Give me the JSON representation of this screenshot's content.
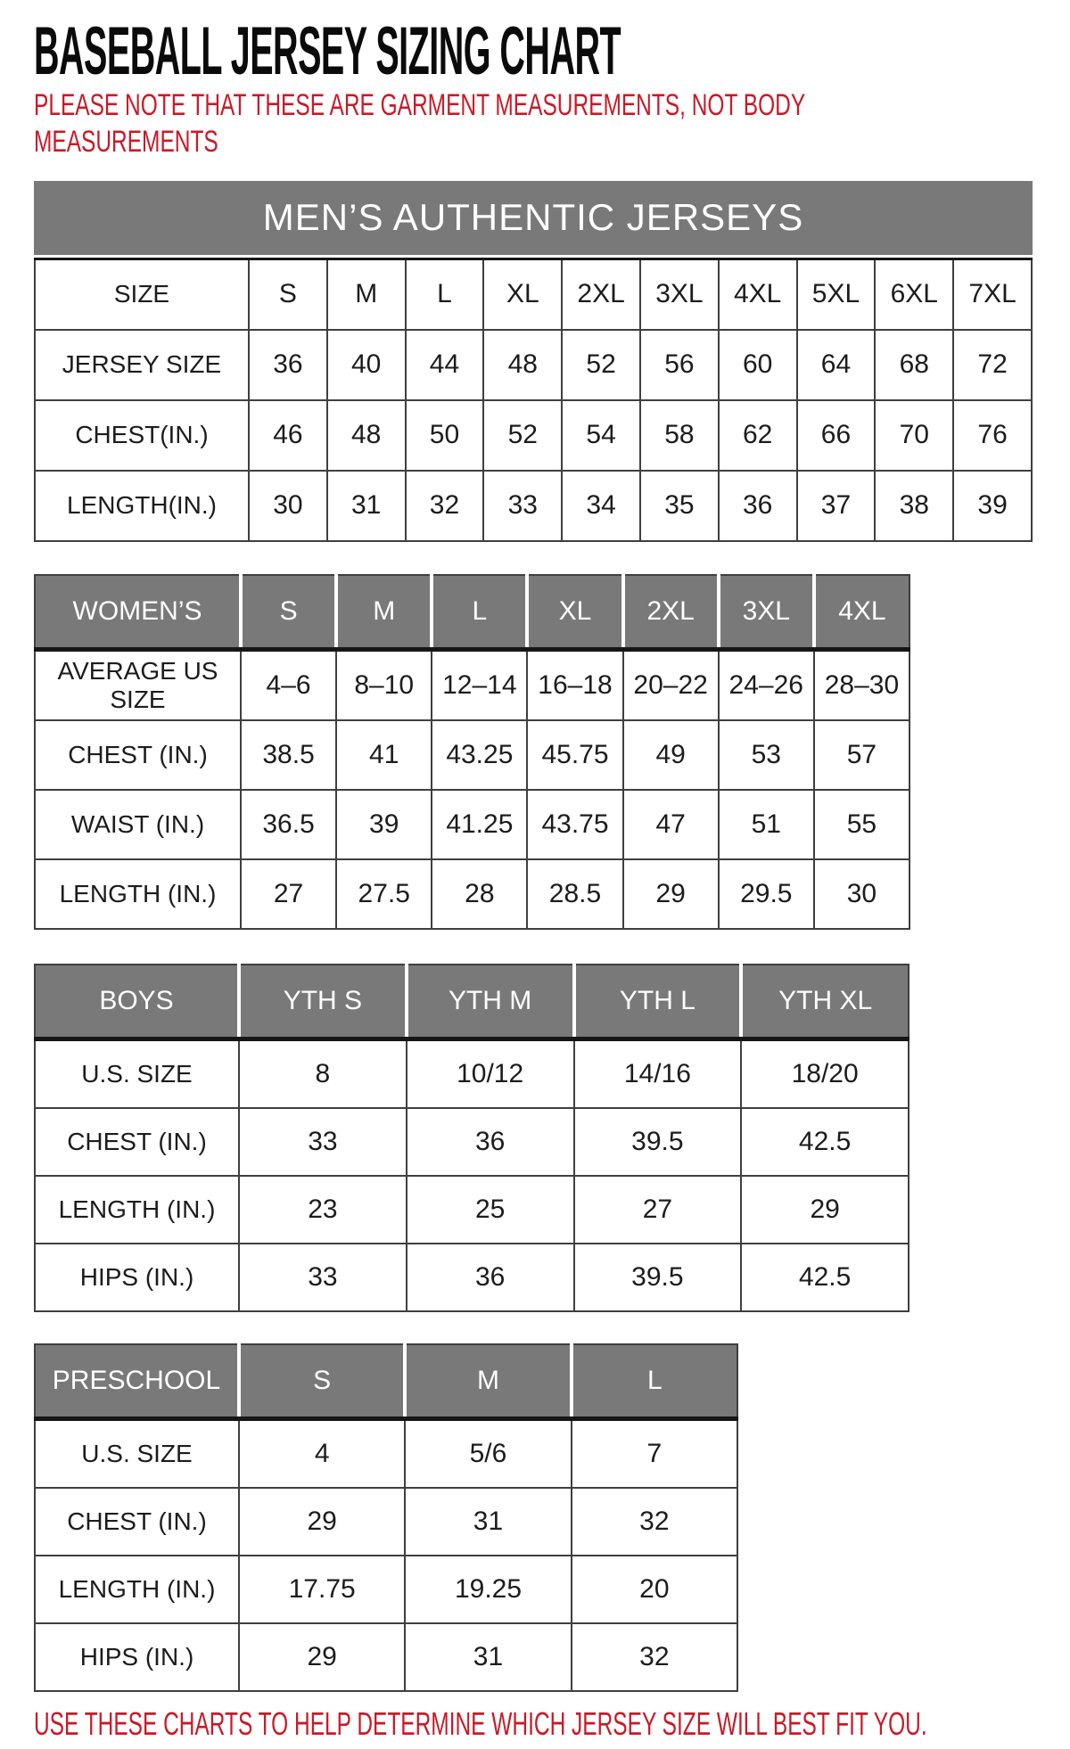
{
  "page": {
    "title": "BASEBALL JERSEY SIZING CHART",
    "note": "PLEASE NOTE THAT THESE ARE GARMENT MEASUREMENTS, NOT BODY MEASUREMENTS",
    "footer": "USE THESE CHARTS TO HELP DETERMINE WHICH JERSEY SIZE WILL BEST FIT YOU.",
    "colors": {
      "accent_red": "#c81a28",
      "header_gray": "#797979"
    }
  },
  "tables": {
    "mens": {
      "banner": "MEN’S AUTHENTIC JERSEYS",
      "rows": [
        [
          "SIZE",
          "S",
          "M",
          "L",
          "XL",
          "2XL",
          "3XL",
          "4XL",
          "5XL",
          "6XL",
          "7XL"
        ],
        [
          "JERSEY SIZE",
          "36",
          "40",
          "44",
          "48",
          "52",
          "56",
          "60",
          "64",
          "68",
          "72"
        ],
        [
          "CHEST(IN.)",
          "46",
          "48",
          "50",
          "52",
          "54",
          "58",
          "62",
          "66",
          "70",
          "76"
        ],
        [
          "LENGTH(IN.)",
          "30",
          "31",
          "32",
          "33",
          "34",
          "35",
          "36",
          "37",
          "38",
          "39"
        ]
      ]
    },
    "womens": {
      "header_row": [
        "WOMEN’S",
        "S",
        "M",
        "L",
        "XL",
        "2XL",
        "3XL",
        "4XL"
      ],
      "rows": [
        [
          "AVERAGE US SIZE",
          "4–6",
          "8–10",
          "12–14",
          "16–18",
          "20–22",
          "24–26",
          "28–30"
        ],
        [
          "CHEST (IN.)",
          "38.5",
          "41",
          "43.25",
          "45.75",
          "49",
          "53",
          "57"
        ],
        [
          "WAIST (IN.)",
          "36.5",
          "39",
          "41.25",
          "43.75",
          "47",
          "51",
          "55"
        ],
        [
          "LENGTH (IN.)",
          "27",
          "27.5",
          "28",
          "28.5",
          "29",
          "29.5",
          "30"
        ]
      ]
    },
    "boys": {
      "header_row": [
        "BOYS",
        "YTH S",
        "YTH M",
        "YTH L",
        "YTH XL"
      ],
      "rows": [
        [
          "U.S. SIZE",
          "8",
          "10/12",
          "14/16",
          "18/20"
        ],
        [
          "CHEST (IN.)",
          "33",
          "36",
          "39.5",
          "42.5"
        ],
        [
          "LENGTH (IN.)",
          "23",
          "25",
          "27",
          "29"
        ],
        [
          "HIPS (IN.)",
          "33",
          "36",
          "39.5",
          "42.5"
        ]
      ]
    },
    "preschool": {
      "header_row": [
        "PRESCHOOL",
        "S",
        "M",
        "L"
      ],
      "rows": [
        [
          "U.S. SIZE",
          "4",
          "5/6",
          "7"
        ],
        [
          "CHEST (IN.)",
          "29",
          "31",
          "32"
        ],
        [
          "LENGTH (IN.)",
          "17.75",
          "19.25",
          "20"
        ],
        [
          "HIPS (IN.)",
          "29",
          "31",
          "32"
        ]
      ]
    }
  }
}
